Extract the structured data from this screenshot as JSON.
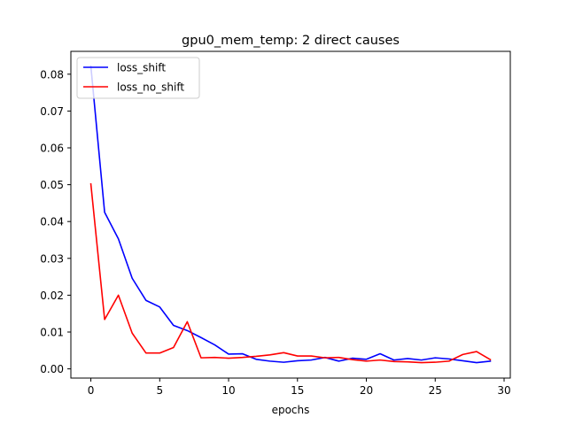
{
  "chart_data": {
    "type": "line",
    "title": "gpu0_mem_temp: 2 direct causes",
    "xlabel": "epochs",
    "ylabel": "",
    "xlim": [
      -1.45,
      30.45
    ],
    "ylim": [
      -0.0025,
      0.0862
    ],
    "xticks": [
      0,
      5,
      10,
      15,
      20,
      25,
      30
    ],
    "xtick_labels": [
      "0",
      "5",
      "10",
      "15",
      "20",
      "25",
      "30"
    ],
    "yticks": [
      0.0,
      0.01,
      0.02,
      0.03,
      0.04,
      0.05,
      0.06,
      0.07,
      0.08
    ],
    "ytick_labels": [
      "0.00",
      "0.01",
      "0.02",
      "0.03",
      "0.04",
      "0.05",
      "0.06",
      "0.07",
      "0.08"
    ],
    "grid": false,
    "legend_position": "upper-left",
    "x": [
      0,
      1,
      2,
      3,
      4,
      5,
      6,
      7,
      8,
      9,
      10,
      11,
      12,
      13,
      14,
      15,
      16,
      17,
      18,
      19,
      20,
      21,
      22,
      23,
      24,
      25,
      26,
      27,
      28,
      29
    ],
    "series": [
      {
        "name": "loss_shift",
        "color": "#0000ff",
        "values": [
          0.0822,
          0.0425,
          0.0353,
          0.0246,
          0.0186,
          0.0168,
          0.0118,
          0.0104,
          0.0085,
          0.0065,
          0.004,
          0.0041,
          0.0026,
          0.0021,
          0.0018,
          0.0022,
          0.0024,
          0.0031,
          0.0021,
          0.0029,
          0.0026,
          0.0041,
          0.0024,
          0.0028,
          0.0024,
          0.003,
          0.0027,
          0.0022,
          0.0017,
          0.0021
        ]
      },
      {
        "name": "loss_no_shift",
        "color": "#ff0000",
        "values": [
          0.0502,
          0.0134,
          0.02,
          0.0097,
          0.0043,
          0.0043,
          0.0058,
          0.0128,
          0.003,
          0.0031,
          0.0029,
          0.0031,
          0.0034,
          0.0038,
          0.0044,
          0.0035,
          0.0035,
          0.003,
          0.0031,
          0.0025,
          0.0021,
          0.0024,
          0.002,
          0.0019,
          0.0017,
          0.0018,
          0.0021,
          0.0039,
          0.0047,
          0.0025
        ]
      }
    ]
  }
}
